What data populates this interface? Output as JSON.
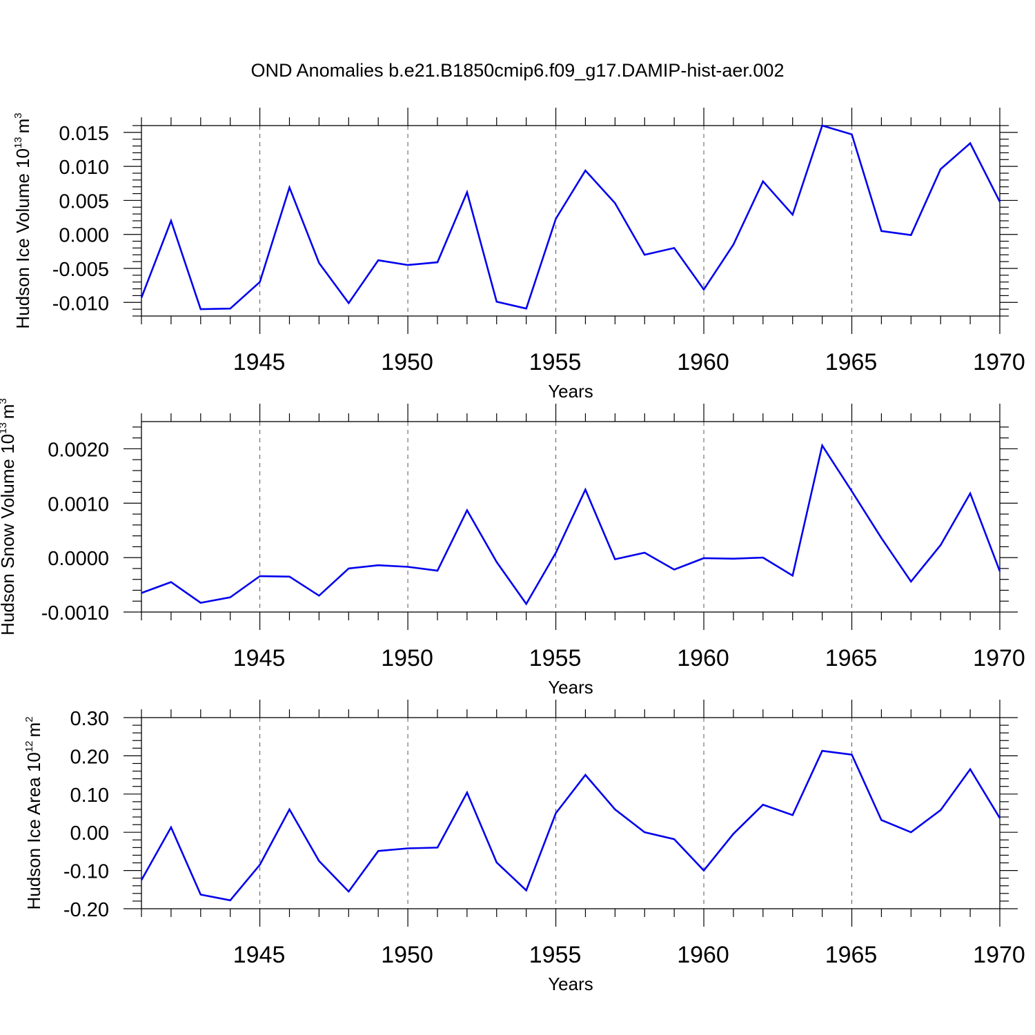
{
  "title": "OND Anomalies b.e21.B1850cmip6.f09_g17.DAMIP-hist-aer.002",
  "line_color": "#0000ee",
  "chart_data": [
    {
      "type": "line",
      "ylabel": "Hudson Ice Volume 10",
      "ylabel_exp": "13",
      "ylabel_unit": "m",
      "ylabel_unit_exp": "3",
      "xlabel": "Years",
      "xlim": [
        1941,
        1970
      ],
      "ylim": [
        -0.012,
        0.016
      ],
      "xticks": [
        1945,
        1950,
        1955,
        1960,
        1965,
        1970
      ],
      "xtick_labels": [
        "1945",
        "1950",
        "1955",
        "1960",
        "1965",
        "1970"
      ],
      "yticks": [
        -0.01,
        -0.005,
        0.0,
        0.005,
        0.01,
        0.015
      ],
      "ytick_labels": [
        "-0.010",
        "-0.005",
        "0.000",
        "0.005",
        "0.010",
        "0.015"
      ],
      "yminor_step": 0.001,
      "x": [
        1941,
        1942,
        1943,
        1944,
        1945,
        1946,
        1947,
        1948,
        1949,
        1950,
        1951,
        1952,
        1953,
        1954,
        1955,
        1956,
        1957,
        1958,
        1959,
        1960,
        1961,
        1962,
        1963,
        1964,
        1965,
        1966,
        1967,
        1968,
        1969,
        1970
      ],
      "series": [
        {
          "name": "Hudson Ice Volume",
          "values": [
            -0.0093,
            0.002,
            -0.011,
            -0.0109,
            -0.007,
            0.0069,
            -0.0042,
            -0.0101,
            -0.0038,
            -0.0045,
            -0.0041,
            0.0062,
            -0.0099,
            -0.0109,
            0.0023,
            0.0094,
            0.0046,
            -0.003,
            -0.002,
            -0.0081,
            -0.0015,
            0.0078,
            0.0029,
            0.016,
            0.0147,
            0.0005,
            -0.0001,
            0.0096,
            0.0134,
            0.0048
          ]
        }
      ]
    },
    {
      "type": "line",
      "ylabel": "Hudson Snow Volume 10",
      "ylabel_exp": "13",
      "ylabel_unit": "m",
      "ylabel_unit_exp": "3",
      "xlabel": "Years",
      "xlim": [
        1941,
        1970
      ],
      "ylim": [
        -0.001,
        0.0025
      ],
      "xticks": [
        1945,
        1950,
        1955,
        1960,
        1965,
        1970
      ],
      "xtick_labels": [
        "1945",
        "1950",
        "1955",
        "1960",
        "1965",
        "1970"
      ],
      "yticks": [
        -0.001,
        0.0,
        0.001,
        0.002
      ],
      "ytick_labels": [
        "-0.0010",
        "0.0000",
        "0.0010",
        "0.0020"
      ],
      "yminor_step": 0.0002,
      "x": [
        1941,
        1942,
        1943,
        1944,
        1945,
        1946,
        1947,
        1948,
        1949,
        1950,
        1951,
        1952,
        1953,
        1954,
        1955,
        1956,
        1957,
        1958,
        1959,
        1960,
        1961,
        1962,
        1963,
        1964,
        1965,
        1966,
        1967,
        1968,
        1969,
        1970
      ],
      "series": [
        {
          "name": "Hudson Snow Volume",
          "values": [
            -0.00065,
            -0.00045,
            -0.00083,
            -0.00073,
            -0.00034,
            -0.00035,
            -0.0007,
            -0.0002,
            -0.00014,
            -0.00017,
            -0.00024,
            0.00087,
            -8e-05,
            -0.00085,
            9e-05,
            0.00125,
            -3e-05,
            9e-05,
            -0.00022,
            -1e-05,
            -2e-05,
            0.0,
            -0.00033,
            0.00206,
            0.00122,
            0.00036,
            -0.00044,
            0.00023,
            0.00118,
            -0.00025
          ]
        }
      ]
    },
    {
      "type": "line",
      "ylabel": "Hudson Ice Area 10",
      "ylabel_exp": "12",
      "ylabel_unit": "m",
      "ylabel_unit_exp": "2",
      "xlabel": "Years",
      "xlim": [
        1941,
        1970
      ],
      "ylim": [
        -0.2,
        0.3
      ],
      "xticks": [
        1945,
        1950,
        1955,
        1960,
        1965,
        1970
      ],
      "xtick_labels": [
        "1945",
        "1950",
        "1955",
        "1960",
        "1965",
        "1970"
      ],
      "yticks": [
        -0.2,
        -0.1,
        0.0,
        0.1,
        0.2,
        0.3
      ],
      "ytick_labels": [
        "-0.20",
        "-0.10",
        "0.00",
        "0.10",
        "0.20",
        "0.30"
      ],
      "yminor_step": 0.02,
      "x": [
        1941,
        1942,
        1943,
        1944,
        1945,
        1946,
        1947,
        1948,
        1949,
        1950,
        1951,
        1952,
        1953,
        1954,
        1955,
        1956,
        1957,
        1958,
        1959,
        1960,
        1961,
        1962,
        1963,
        1964,
        1965,
        1966,
        1967,
        1968,
        1969,
        1970
      ],
      "series": [
        {
          "name": "Hudson Ice Area",
          "values": [
            -0.125,
            0.013,
            -0.163,
            -0.178,
            -0.085,
            0.06,
            -0.075,
            -0.155,
            -0.049,
            -0.042,
            -0.04,
            0.104,
            -0.079,
            -0.152,
            0.05,
            0.15,
            0.06,
            0.0,
            -0.018,
            -0.1,
            -0.004,
            0.072,
            0.045,
            0.213,
            0.203,
            0.032,
            0.0,
            0.058,
            0.165,
            0.037
          ]
        }
      ]
    }
  ]
}
